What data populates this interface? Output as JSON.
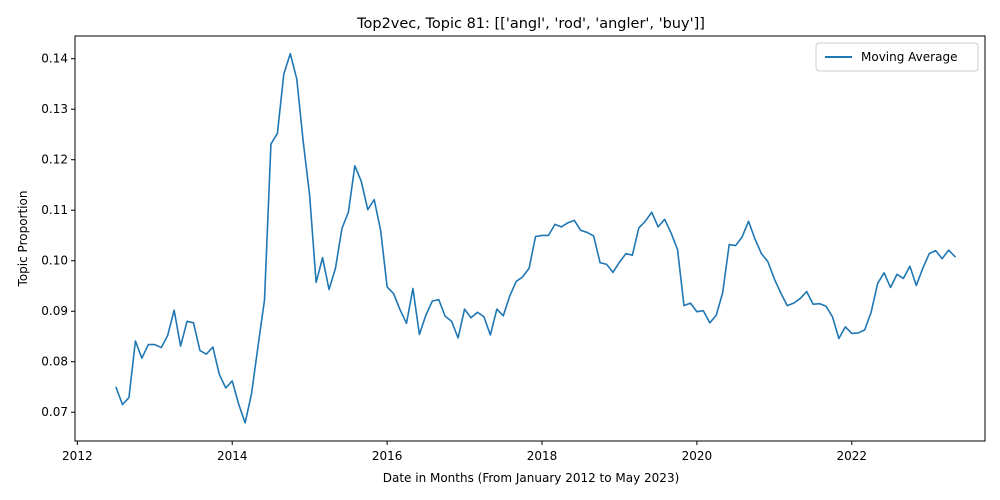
{
  "chart_data": {
    "type": "line",
    "title": "Top2vec, Topic 81: [['angl', 'rod', 'angler', 'buy']]",
    "xlabel": "Date in Months (From January 2012 to May 2023)",
    "ylabel": "Topic Proportion",
    "xlim": [
      2011.97,
      2023.72
    ],
    "ylim": [
      0.0643,
      0.1445
    ],
    "x_ticks": [
      2012,
      2014,
      2016,
      2018,
      2020,
      2022
    ],
    "y_ticks": [
      0.07,
      0.08,
      0.09,
      0.1,
      0.11,
      0.12,
      0.13,
      0.14
    ],
    "y_tick_labels": [
      "0.07",
      "0.08",
      "0.09",
      "0.10",
      "0.11",
      "0.12",
      "0.13",
      "0.14"
    ],
    "grid": false,
    "legend_position": "top-right",
    "series": [
      {
        "name": "Moving Average",
        "color": "#1f77b4",
        "x": [
          "2012-07",
          "2012-08",
          "2012-09",
          "2012-10",
          "2012-11",
          "2012-12",
          "2013-01",
          "2013-02",
          "2013-03",
          "2013-04",
          "2013-05",
          "2013-06",
          "2013-07",
          "2013-08",
          "2013-09",
          "2013-10",
          "2013-11",
          "2013-12",
          "2014-01",
          "2014-02",
          "2014-03",
          "2014-04",
          "2014-05",
          "2014-06",
          "2014-07",
          "2014-08",
          "2014-09",
          "2014-10",
          "2014-11",
          "2014-12",
          "2015-01",
          "2015-02",
          "2015-03",
          "2015-04",
          "2015-05",
          "2015-06",
          "2015-07",
          "2015-08",
          "2015-09",
          "2015-10",
          "2015-11",
          "2015-12",
          "2016-01",
          "2016-02",
          "2016-03",
          "2016-04",
          "2016-05",
          "2016-06",
          "2016-07",
          "2016-08",
          "2016-09",
          "2016-10",
          "2016-11",
          "2016-12",
          "2017-01",
          "2017-02",
          "2017-03",
          "2017-04",
          "2017-05",
          "2017-06",
          "2017-07",
          "2017-08",
          "2017-09",
          "2017-10",
          "2017-11",
          "2017-12",
          "2018-01",
          "2018-02",
          "2018-03",
          "2018-04",
          "2018-05",
          "2018-06",
          "2018-07",
          "2018-08",
          "2018-09",
          "2018-10",
          "2018-11",
          "2018-12",
          "2019-01",
          "2019-02",
          "2019-03",
          "2019-04",
          "2019-05",
          "2019-06",
          "2019-07",
          "2019-08",
          "2019-09",
          "2019-10",
          "2019-11",
          "2019-12",
          "2020-01",
          "2020-02",
          "2020-03",
          "2020-04",
          "2020-05",
          "2020-06",
          "2020-07",
          "2020-08",
          "2020-09",
          "2020-10",
          "2020-11",
          "2020-12",
          "2021-01",
          "2021-02",
          "2021-03",
          "2021-04",
          "2021-05",
          "2021-06",
          "2021-07",
          "2021-08",
          "2021-09",
          "2021-10",
          "2021-11",
          "2021-12",
          "2022-01",
          "2022-02",
          "2022-03",
          "2022-04",
          "2022-05",
          "2022-06",
          "2022-07",
          "2022-08",
          "2022-09",
          "2022-10",
          "2022-11",
          "2022-12",
          "2023-01",
          "2023-02",
          "2023-03",
          "2023-04",
          "2023-05"
        ],
        "values": [
          0.0749,
          0.0715,
          0.0729,
          0.0841,
          0.0807,
          0.0834,
          0.0834,
          0.0828,
          0.0852,
          0.0902,
          0.0831,
          0.088,
          0.0877,
          0.0822,
          0.0815,
          0.0829,
          0.0775,
          0.0748,
          0.0762,
          0.0716,
          0.0679,
          0.0737,
          0.0831,
          0.0922,
          0.1231,
          0.1252,
          0.137,
          0.141,
          0.136,
          0.1236,
          0.1129,
          0.0957,
          0.1006,
          0.0943,
          0.0985,
          0.1064,
          0.1096,
          0.1188,
          0.1157,
          0.1101,
          0.1121,
          0.106,
          0.0948,
          0.0935,
          0.0903,
          0.0876,
          0.0945,
          0.0854,
          0.0892,
          0.092,
          0.0923,
          0.089,
          0.088,
          0.0847,
          0.0904,
          0.0887,
          0.0898,
          0.0889,
          0.0853,
          0.0904,
          0.0891,
          0.093,
          0.0959,
          0.0968,
          0.0985,
          0.1048,
          0.105,
          0.105,
          0.1072,
          0.1067,
          0.1075,
          0.108,
          0.106,
          0.1056,
          0.1049,
          0.0996,
          0.0993,
          0.0977,
          0.0997,
          0.1014,
          0.1011,
          0.1065,
          0.1078,
          0.1096,
          0.1067,
          0.1082,
          0.1055,
          0.1022,
          0.0911,
          0.0916,
          0.0899,
          0.0901,
          0.0877,
          0.0892,
          0.0937,
          0.1032,
          0.103,
          0.1047,
          0.1078,
          0.1043,
          0.1014,
          0.0998,
          0.0964,
          0.0936,
          0.0911,
          0.0916,
          0.0925,
          0.0939,
          0.0914,
          0.0915,
          0.091,
          0.0889,
          0.0846,
          0.0869,
          0.0856,
          0.0857,
          0.0863,
          0.0898,
          0.0955,
          0.0976,
          0.0947,
          0.0973,
          0.0965,
          0.0989,
          0.0951,
          0.0985,
          0.1014,
          0.102,
          0.1004,
          0.1021,
          0.1008
        ]
      }
    ]
  }
}
